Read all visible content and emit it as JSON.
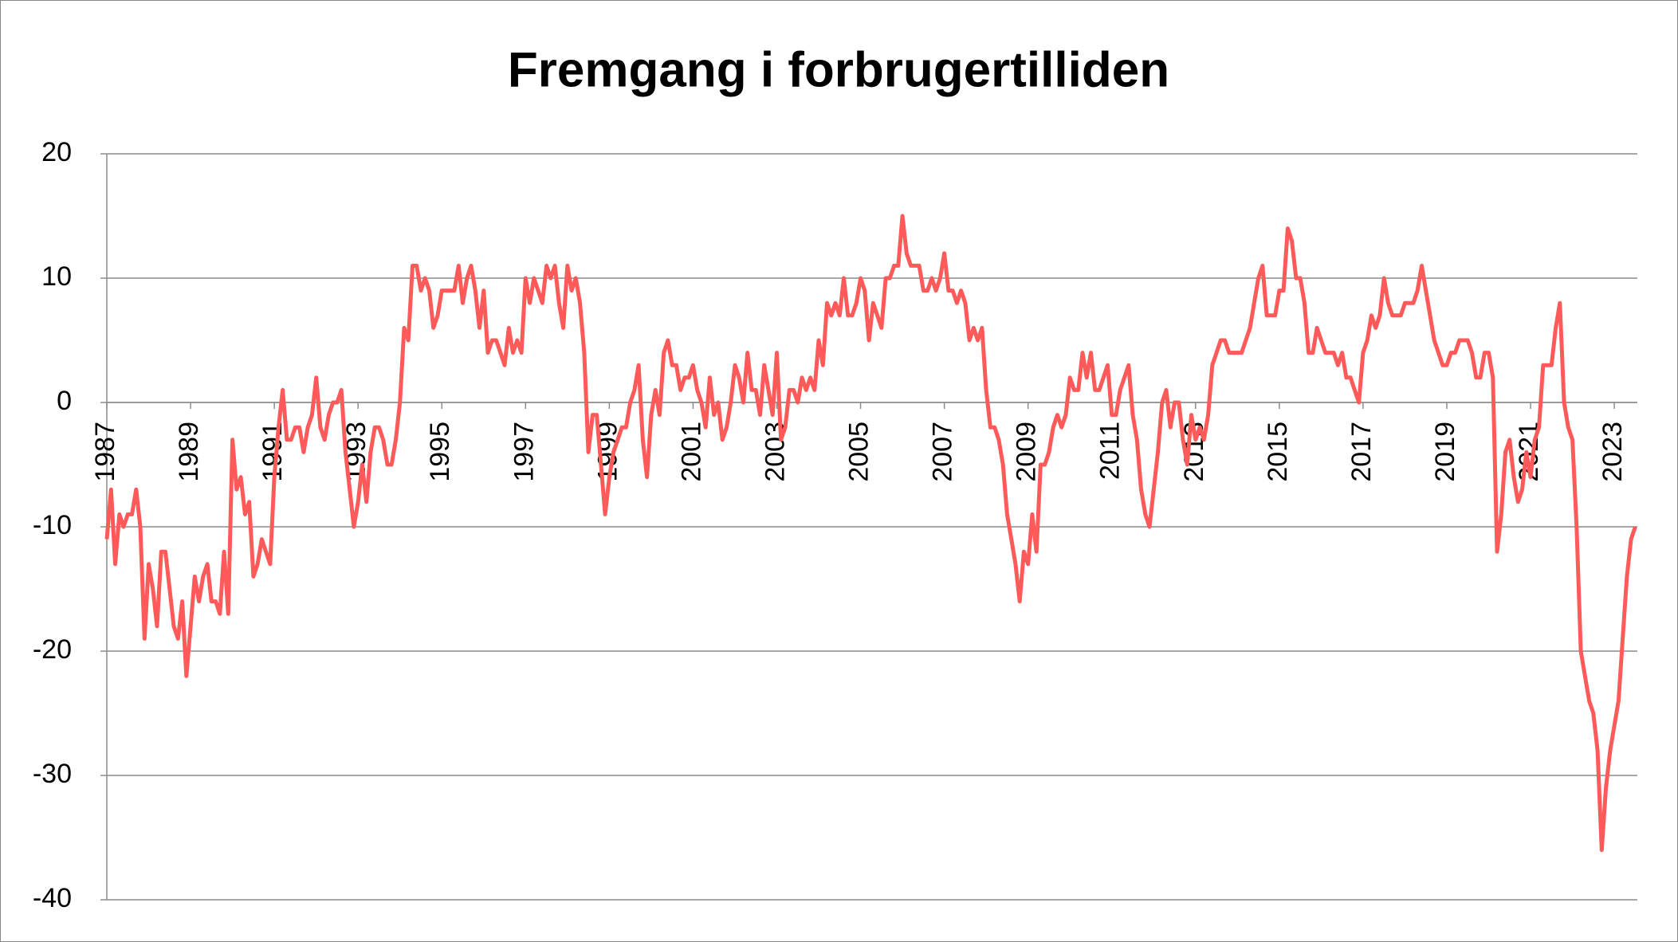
{
  "chart_data": {
    "type": "line",
    "title": "Fremgang i forbrugertilliden",
    "x": [
      1987,
      1987.1,
      1987.2,
      1987.3,
      1987.4,
      1987.5,
      1987.6,
      1987.7,
      1987.8,
      1987.9,
      1988,
      1988.1,
      1988.2,
      1988.3,
      1988.4,
      1988.5,
      1988.6,
      1988.7,
      1988.8,
      1988.9,
      1989,
      1989.1,
      1989.2,
      1989.3,
      1989.4,
      1989.5,
      1989.6,
      1989.7,
      1989.8,
      1989.9,
      1990,
      1990.1,
      1990.2,
      1990.3,
      1990.4,
      1990.5,
      1990.6,
      1990.7,
      1990.8,
      1990.9,
      1991,
      1991.1,
      1991.2,
      1991.3,
      1991.4,
      1991.5,
      1991.6,
      1991.7,
      1991.8,
      1991.9,
      1992,
      1992.1,
      1992.2,
      1992.3,
      1992.4,
      1992.5,
      1992.6,
      1992.7,
      1992.8,
      1992.9,
      1993,
      1993.1,
      1993.2,
      1993.3,
      1993.4,
      1993.5,
      1993.6,
      1993.7,
      1993.8,
      1993.9,
      1994,
      1994.1,
      1994.2,
      1994.3,
      1994.4,
      1994.5,
      1994.6,
      1994.7,
      1994.8,
      1994.9,
      1995,
      1995.1,
      1995.2,
      1995.3,
      1995.4,
      1995.5,
      1995.6,
      1995.7,
      1995.8,
      1995.9,
      1996,
      1996.1,
      1996.2,
      1996.3,
      1996.4,
      1996.5,
      1996.6,
      1996.7,
      1996.8,
      1996.9,
      1997,
      1997.1,
      1997.2,
      1997.3,
      1997.4,
      1997.5,
      1997.6,
      1997.7,
      1997.8,
      1997.9,
      1998,
      1998.1,
      1998.2,
      1998.3,
      1998.4,
      1998.5,
      1998.6,
      1998.7,
      1998.8,
      1998.9,
      1999,
      1999.1,
      1999.2,
      1999.3,
      1999.4,
      1999.5,
      1999.6,
      1999.7,
      1999.8,
      1999.9,
      2000,
      2000.1,
      2000.2,
      2000.3,
      2000.4,
      2000.5,
      2000.6,
      2000.7,
      2000.8,
      2000.9,
      2001,
      2001.1,
      2001.2,
      2001.3,
      2001.4,
      2001.5,
      2001.6,
      2001.7,
      2001.8,
      2001.9,
      2002,
      2002.1,
      2002.2,
      2002.3,
      2002.4,
      2002.5,
      2002.6,
      2002.7,
      2002.8,
      2002.9,
      2003,
      2003.1,
      2003.2,
      2003.3,
      2003.4,
      2003.5,
      2003.6,
      2003.7,
      2003.8,
      2003.9,
      2004,
      2004.1,
      2004.2,
      2004.3,
      2004.4,
      2004.5,
      2004.6,
      2004.7,
      2004.8,
      2004.9,
      2005,
      2005.1,
      2005.2,
      2005.3,
      2005.4,
      2005.5,
      2005.6,
      2005.7,
      2005.8,
      2005.9,
      2006,
      2006.1,
      2006.2,
      2006.3,
      2006.4,
      2006.5,
      2006.6,
      2006.7,
      2006.8,
      2006.9,
      2007,
      2007.1,
      2007.2,
      2007.3,
      2007.4,
      2007.5,
      2007.6,
      2007.7,
      2007.8,
      2007.9,
      2008,
      2008.1,
      2008.2,
      2008.3,
      2008.4,
      2008.5,
      2008.6,
      2008.7,
      2008.8,
      2008.9,
      2009,
      2009.1,
      2009.2,
      2009.3,
      2009.4,
      2009.5,
      2009.6,
      2009.7,
      2009.8,
      2009.9,
      2010,
      2010.1,
      2010.2,
      2010.3,
      2010.4,
      2010.5,
      2010.6,
      2010.7,
      2010.8,
      2010.9,
      2011,
      2011.1,
      2011.2,
      2011.3,
      2011.4,
      2011.5,
      2011.6,
      2011.7,
      2011.8,
      2011.9,
      2012,
      2012.1,
      2012.2,
      2012.3,
      2012.4,
      2012.5,
      2012.6,
      2012.7,
      2012.8,
      2012.9,
      2013,
      2013.1,
      2013.2,
      2013.3,
      2013.4,
      2013.5,
      2013.6,
      2013.7,
      2013.8,
      2013.9,
      2014,
      2014.1,
      2014.2,
      2014.3,
      2014.4,
      2014.5,
      2014.6,
      2014.7,
      2014.8,
      2014.9,
      2015,
      2015.1,
      2015.2,
      2015.3,
      2015.4,
      2015.5,
      2015.6,
      2015.7,
      2015.8,
      2015.9,
      2016,
      2016.1,
      2016.2,
      2016.3,
      2016.4,
      2016.5,
      2016.6,
      2016.7,
      2016.8,
      2016.9,
      2017,
      2017.1,
      2017.2,
      2017.3,
      2017.4,
      2017.5,
      2017.6,
      2017.7,
      2017.8,
      2017.9,
      2018,
      2018.1,
      2018.2,
      2018.3,
      2018.4,
      2018.5,
      2018.6,
      2018.7,
      2018.8,
      2018.9,
      2019,
      2019.1,
      2019.2,
      2019.3,
      2019.4,
      2019.5,
      2019.6,
      2019.7,
      2019.8,
      2019.9,
      2020,
      2020.1,
      2020.2,
      2020.3,
      2020.4,
      2020.5,
      2020.6,
      2020.7,
      2020.8,
      2020.9,
      2021,
      2021.1,
      2021.2,
      2021.3,
      2021.4,
      2021.5,
      2021.6,
      2021.7,
      2021.8,
      2021.9,
      2022,
      2022.1,
      2022.2,
      2022.3,
      2022.4,
      2022.5,
      2022.6,
      2022.7,
      2022.8,
      2022.9,
      2023,
      2023.1,
      2023.2,
      2023.3,
      2023.4,
      2023.5
    ],
    "series": [
      {
        "color": "#ff5a5a",
        "values": [
          -11,
          -7,
          -13,
          -9,
          -10,
          -9,
          -9,
          -7,
          -10,
          -19,
          -13,
          -15,
          -18,
          -12,
          -12,
          -15,
          -18,
          -19,
          -16,
          -22,
          -18,
          -14,
          -16,
          -14,
          -13,
          -16,
          -16,
          -17,
          -12,
          -17,
          -3,
          -7,
          -6,
          -9,
          -8,
          -14,
          -13,
          -11,
          -12,
          -13,
          -6,
          -2,
          1,
          -3,
          -3,
          -2,
          -2,
          -4,
          -2,
          -1,
          2,
          -2,
          -3,
          -1,
          0,
          0,
          1,
          -4,
          -7,
          -10,
          -8,
          -5,
          -8,
          -4,
          -2,
          -2,
          -3,
          -5,
          -5,
          -3,
          0,
          6,
          5,
          11,
          11,
          9,
          10,
          9,
          6,
          7,
          9,
          9,
          9,
          9,
          11,
          8,
          10,
          11,
          9,
          6,
          9,
          4,
          5,
          5,
          4,
          3,
          6,
          4,
          5,
          4,
          10,
          8,
          10,
          9,
          8,
          11,
          10,
          11,
          8,
          6,
          11,
          9,
          10,
          8,
          4,
          -4,
          -1,
          -1,
          -5,
          -9,
          -6,
          -4,
          -3,
          -2,
          -2,
          0,
          1,
          3,
          -3,
          -6,
          -1,
          1,
          -1,
          4,
          5,
          3,
          3,
          1,
          2,
          2,
          3,
          1,
          0,
          -2,
          2,
          -1,
          0,
          -3,
          -2,
          0,
          3,
          2,
          0,
          4,
          1,
          1,
          -1,
          3,
          1,
          -1,
          4,
          -3,
          -2,
          1,
          1,
          0,
          2,
          1,
          2,
          1,
          5,
          3,
          8,
          7,
          8,
          7,
          10,
          7,
          7,
          8,
          10,
          9,
          5,
          8,
          7,
          6,
          10,
          10,
          11,
          11,
          15,
          12,
          11,
          11,
          11,
          9,
          9,
          10,
          9,
          10,
          12,
          9,
          9,
          8,
          9,
          8,
          5,
          6,
          5,
          6,
          1,
          -2,
          -2,
          -3,
          -5,
          -9,
          -11,
          -13,
          -16,
          -12,
          -13,
          -9,
          -12,
          -5,
          -5,
          -4,
          -2,
          -1,
          -2,
          -1,
          2,
          1,
          1,
          4,
          2,
          4,
          1,
          1,
          2,
          3,
          -1,
          -1,
          1,
          2,
          3,
          -1,
          -3,
          -7,
          -9,
          -10,
          -7,
          -4,
          0,
          1,
          -2,
          0,
          0,
          -3,
          -5,
          -1,
          -3,
          -2,
          -3,
          -1,
          3,
          4,
          5,
          5,
          4,
          4,
          4,
          4,
          5,
          6,
          8,
          10,
          11,
          7,
          7,
          7,
          9,
          9,
          14,
          13,
          10,
          10,
          8,
          4,
          4,
          6,
          5,
          4,
          4,
          4,
          3,
          4,
          2,
          2,
          1,
          0,
          4,
          5,
          7,
          6,
          7,
          10,
          8,
          7,
          7,
          7,
          8,
          8,
          8,
          9,
          11,
          9,
          7,
          5,
          4,
          3,
          3,
          4,
          4,
          5,
          5,
          5,
          4,
          2,
          2,
          4,
          4,
          2,
          -12,
          -9,
          -4,
          -3,
          -6,
          -8,
          -7,
          -4,
          -6,
          -3,
          -2,
          3,
          3,
          3,
          6,
          8,
          0,
          -2,
          -3,
          -10,
          -20,
          -22,
          -24,
          -25,
          -28,
          -36,
          -31,
          -28,
          -26,
          -24,
          -19,
          -14,
          -11,
          -10
        ]
      }
    ],
    "xlim": [
      1987,
      2023.55
    ],
    "xticks": [
      1987,
      1989,
      1991,
      1993,
      1995,
      1997,
      1999,
      2001,
      2003,
      2005,
      2007,
      2009,
      2011,
      2013,
      2015,
      2017,
      2019,
      2021,
      2023
    ],
    "ylim": [
      -40,
      20
    ],
    "yticks": [
      -40,
      -30,
      -20,
      -10,
      0,
      10,
      20
    ],
    "grid": true
  }
}
